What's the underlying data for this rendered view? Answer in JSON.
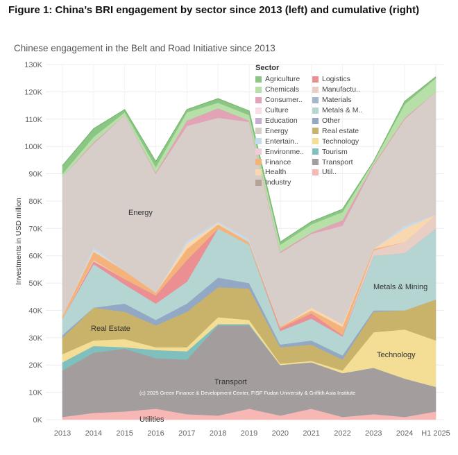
{
  "figure_title": "Figure 1: China’s BRI engagement by sector since 2013 (left) and cumulative (right)",
  "chart_data": {
    "type": "area",
    "title": "Chinese engagement in the Belt and Road Initiative since 2013",
    "ylabel": "Investments in USD million",
    "xlabel": "",
    "ylim": [
      0,
      130000
    ],
    "grid": true,
    "legend_title": "Sector",
    "legend_position": "top-right",
    "x": [
      "2013",
      "2014",
      "2015",
      "2016",
      "2017",
      "2018",
      "2019",
      "2020",
      "2021",
      "2022",
      "2023",
      "2024",
      "H1 2025"
    ],
    "y_ticks": [
      "0K",
      "10K",
      "20K",
      "30K",
      "40K",
      "50K",
      "60K",
      "70K",
      "80K",
      "90K",
      "100K",
      "110K",
      "120K",
      "130K"
    ],
    "legend_items": [
      "Agriculture",
      "Chemicals",
      "Consumer..",
      "Culture",
      "Education",
      "Energy",
      "Entertain..",
      "Environme..",
      "Finance",
      "Health",
      "Industry",
      "Logistics",
      "Manufactu..",
      "Materials",
      "Metals & M..",
      "Other",
      "Real estate",
      "Technology",
      "Tourism",
      "Transport",
      "Util.."
    ],
    "series": [
      {
        "name": "Utilities",
        "color": "#f7b7b5",
        "values": [
          1000,
          2500,
          3000,
          4000,
          2000,
          1500,
          4000,
          1500,
          4000,
          1000,
          2000,
          1000,
          3000
        ]
      },
      {
        "name": "Transport",
        "color": "#a39d9e",
        "values": [
          17000,
          22000,
          23000,
          18500,
          20000,
          33000,
          30500,
          18500,
          17000,
          16000,
          17000,
          14000,
          9000
        ]
      },
      {
        "name": "Tourism",
        "color": "#7fbfbd",
        "values": [
          3000,
          2500,
          500,
          3000,
          3000,
          500,
          500,
          0,
          0,
          0,
          0,
          0,
          0
        ]
      },
      {
        "name": "Technology",
        "color": "#f4dd95",
        "values": [
          3000,
          2000,
          3000,
          1000,
          1500,
          2500,
          1500,
          500,
          500,
          1000,
          13000,
          18000,
          17000
        ]
      },
      {
        "name": "Real estate",
        "color": "#c9b36a",
        "values": [
          6000,
          12000,
          10000,
          8000,
          13000,
          11000,
          11500,
          6000,
          6000,
          4000,
          7500,
          7000,
          15000
        ]
      },
      {
        "name": "Other",
        "color": "#92a8c5",
        "values": [
          1000,
          0,
          3000,
          2000,
          3000,
          3500,
          2000,
          1000,
          1500,
          1500,
          500,
          0,
          0
        ]
      },
      {
        "name": "Metals & Mining",
        "color": "#b5d5d3",
        "values": [
          6000,
          16000,
          7000,
          6000,
          8000,
          18000,
          14000,
          5000,
          8000,
          7000,
          20000,
          21000,
          26000
        ]
      },
      {
        "name": "Materials",
        "color": "#a4b6cc",
        "values": [
          0,
          0,
          0,
          0,
          0,
          0,
          0,
          0,
          0,
          0,
          0,
          0,
          0
        ]
      },
      {
        "name": "Logistics",
        "color": "#ec8f93",
        "values": [
          0,
          1000,
          2000,
          3000,
          8000,
          0,
          0,
          1000,
          2000,
          500,
          0,
          0,
          0
        ]
      },
      {
        "name": "Manufacturing",
        "color": "#e9cec6",
        "values": [
          0,
          500,
          0,
          0,
          0,
          0,
          0,
          0,
          0,
          0,
          2000,
          4000,
          5000
        ]
      },
      {
        "name": "Finance",
        "color": "#f3b37b",
        "values": [
          1000,
          3000,
          3000,
          1000,
          4000,
          1500,
          1000,
          500,
          1000,
          3000,
          500,
          0,
          0
        ]
      },
      {
        "name": "Health",
        "color": "#f8d7b1",
        "values": [
          0,
          500,
          0,
          0,
          2000,
          500,
          0,
          0,
          1000,
          1000,
          0,
          5000,
          0
        ]
      },
      {
        "name": "Entertainment",
        "color": "#c3dced",
        "values": [
          0,
          1000,
          0,
          0,
          1000,
          500,
          1000,
          0,
          0,
          0,
          0,
          1000,
          0
        ]
      },
      {
        "name": "Environment",
        "color": "#f1cadb",
        "values": [
          0,
          0,
          0,
          0,
          0,
          0,
          0,
          0,
          0,
          0,
          0,
          0,
          0
        ]
      },
      {
        "name": "Energy",
        "color": "#d7ceca",
        "values": [
          51000,
          38000,
          57000,
          43500,
          42000,
          38000,
          43000,
          27000,
          27000,
          36000,
          30500,
          39000,
          45000
        ]
      },
      {
        "name": "Education",
        "color": "#c5aed0",
        "values": [
          0,
          0,
          0,
          0,
          0,
          0,
          0,
          0,
          0,
          0,
          0,
          0,
          0
        ]
      },
      {
        "name": "Culture",
        "color": "#f9dce6",
        "values": [
          0,
          0,
          0,
          0,
          0,
          0,
          0,
          0,
          0,
          0,
          0,
          0,
          0
        ]
      },
      {
        "name": "Consumer",
        "color": "#e2a3b6",
        "values": [
          0,
          500,
          0,
          500,
          2000,
          3500,
          500,
          500,
          500,
          2000,
          500,
          500,
          0
        ]
      },
      {
        "name": "Industry",
        "color": "#b3a296",
        "values": [
          0,
          0,
          0,
          0,
          0,
          0,
          0,
          0,
          0,
          0,
          0,
          0,
          0
        ]
      },
      {
        "name": "Chemicals",
        "color": "#b6e0a7",
        "values": [
          1000,
          2000,
          1000,
          2000,
          3000,
          2000,
          2000,
          2500,
          3000,
          3000,
          1000,
          5000,
          5000
        ]
      },
      {
        "name": "Agriculture",
        "color": "#8bc684",
        "values": [
          3000,
          3000,
          1000,
          2000,
          1000,
          1500,
          1500,
          1000,
          1000,
          1000,
          0,
          1000,
          500
        ]
      }
    ],
    "annotations": [
      "Energy",
      "Real Estate",
      "Transport",
      "Utilities",
      "Metals & Mining",
      "Technology"
    ],
    "credit": "(c) 2025 Green Finance & Development Center, FISF Fudan University & Griffith Asia Institute"
  }
}
